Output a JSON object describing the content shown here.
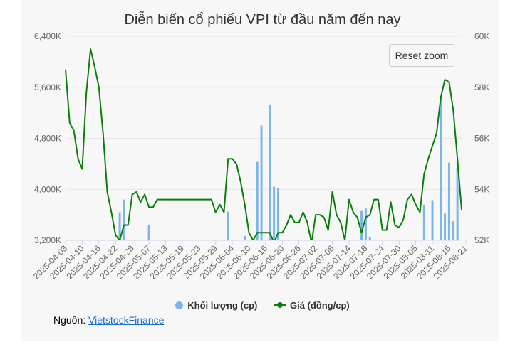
{
  "colors": {
    "volume": "#7cb5ec",
    "price": "#0a7d0a",
    "grid": "#e6e6e6",
    "text": "#666666"
  },
  "legend": {
    "volume_label": "Khối lượng (cp)",
    "price_label": "Giá (đồng/cp)"
  },
  "reset_zoom_label": "Reset zoom",
  "source": {
    "prefix": "Nguồn:",
    "link_text": "VietstockFinance"
  },
  "chart_data": {
    "type": "bar+line",
    "title": "Diễn biến cổ phiếu VPI từ đầu năm đến nay",
    "x_ticks": [
      "2025-04-03",
      "2025-04-10",
      "2025-04-16",
      "2025-04-22",
      "2025-04-28",
      "2025-05-07",
      "2025-05-13",
      "2025-05-19",
      "2025-05-23",
      "2025-05-29",
      "2025-06-04",
      "2025-06-10",
      "2025-06-16",
      "2025-06-20",
      "2025-06-26",
      "2025-07-02",
      "2025-07-08",
      "2025-07-14",
      "2025-07-18",
      "2025-07-24",
      "2025-07-30",
      "2025-08-05",
      "2025-08-11",
      "2025-08-15",
      "2025-08-21"
    ],
    "y_left": {
      "ticks": [
        "3,200K",
        "4,000K",
        "4,800K",
        "5,600K",
        "6,400K"
      ],
      "range": [
        3200000,
        6400000
      ]
    },
    "y_right": {
      "ticks": [
        "52K",
        "54K",
        "56K",
        "58K",
        "60K"
      ],
      "range": [
        52000,
        60000
      ]
    },
    "grid": true,
    "legend_position": "bottom",
    "series": [
      {
        "name": "Khối lượng (cp)",
        "type": "bar",
        "axis": "left",
        "points": [
          [
            13,
            3640000
          ],
          [
            14,
            3840000
          ],
          [
            20,
            3440000
          ],
          [
            39,
            3650000
          ],
          [
            43,
            3270000
          ],
          [
            46,
            4430000
          ],
          [
            47,
            5000000
          ],
          [
            49,
            5330000
          ],
          [
            50,
            4040000
          ],
          [
            51,
            4020000
          ],
          [
            71,
            3660000
          ],
          [
            72,
            3700000
          ],
          [
            73,
            3250000
          ],
          [
            86,
            3760000
          ],
          [
            88,
            3830000
          ],
          [
            90,
            5450000
          ],
          [
            91,
            3620000
          ],
          [
            92,
            4420000
          ],
          [
            93,
            3500000
          ],
          [
            94,
            4340000
          ]
        ]
      },
      {
        "name": "Giá (đồng/cp)",
        "type": "line",
        "axis": "right",
        "values": [
          58.7,
          56.6,
          56.3,
          55.2,
          54.8,
          57.8,
          59.5,
          58.8,
          58.0,
          56.2,
          53.9,
          53.1,
          52.2,
          52.0,
          52.6,
          52.6,
          53.8,
          53.9,
          53.5,
          53.8,
          53.3,
          53.3,
          53.6,
          53.6,
          53.6,
          53.6,
          53.6,
          53.6,
          53.6,
          53.6,
          53.6,
          53.6,
          53.6,
          53.6,
          53.6,
          53.6,
          53.1,
          53.4,
          53.1,
          55.2,
          55.2,
          55.0,
          54.3,
          53.4,
          52.3,
          52.0,
          52.3,
          52.3,
          52.3,
          52.3,
          51.9,
          52.3,
          52.3,
          52.6,
          53.0,
          52.7,
          52.7,
          53.1,
          52.7,
          51.9,
          53.0,
          53.0,
          52.9,
          52.4,
          53.9,
          53.0,
          52.7,
          52.0,
          53.6,
          53.1,
          52.9,
          52.3,
          52.9,
          53.0,
          53.6,
          53.6,
          52.4,
          52.4,
          53.5,
          52.6,
          52.5,
          52.8,
          53.6,
          53.8,
          53.4,
          53.1,
          54.6,
          55.2,
          55.7,
          56.2,
          57.6,
          58.3,
          58.2,
          57.1,
          55.2,
          53.2
        ]
      }
    ]
  }
}
